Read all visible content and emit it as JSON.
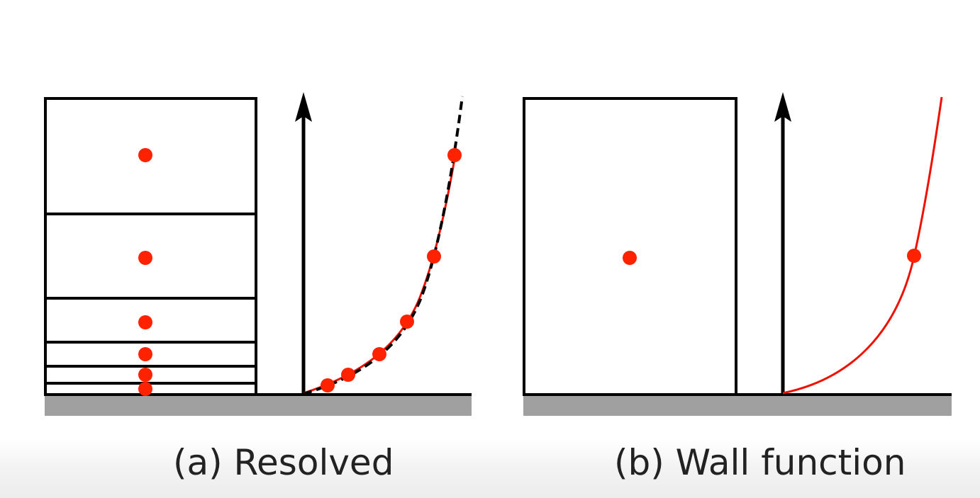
{
  "panels": [
    {
      "id": "a",
      "caption": "(a) Resolved",
      "cell_count": 6,
      "curve_points": 6,
      "curve_style": "red solid with black dashed overlay"
    },
    {
      "id": "b",
      "caption": "(b) Wall function",
      "cell_count": 1,
      "curve_points": 1,
      "curve_style": "red solid"
    }
  ],
  "colors": {
    "outline": "#000000",
    "point": "#ff2200",
    "curve": "#ee1100",
    "wall": "#a0a0a0",
    "caption": "#222222"
  }
}
